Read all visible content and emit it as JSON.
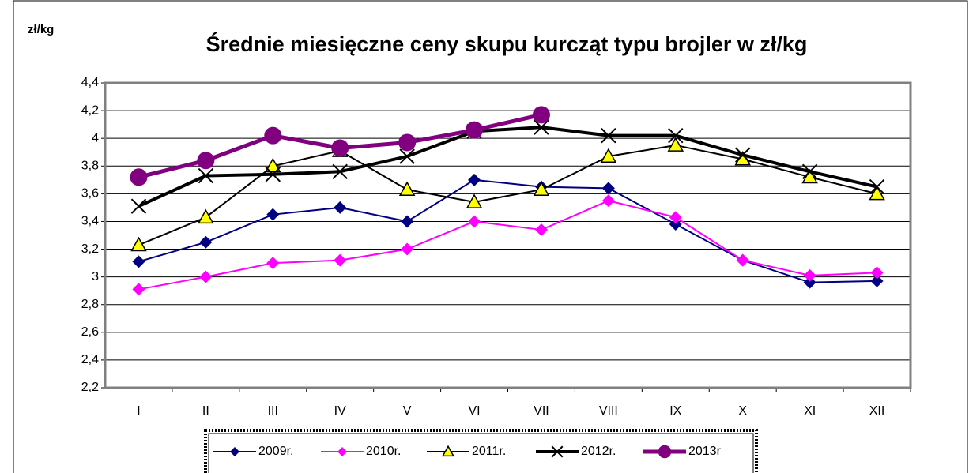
{
  "chart_data": {
    "type": "line",
    "title": "Średnie miesięczne ceny skupu kurcząt typu brojler w zł/kg",
    "y_label": "zł/kg",
    "categories": [
      "I",
      "II",
      "III",
      "IV",
      "V",
      "VI",
      "VII",
      "VIII",
      "IX",
      "X",
      "XI",
      "XII"
    ],
    "series": [
      {
        "name": "2009r.",
        "color": "#000080",
        "marker": "diamond",
        "line_width": 2,
        "values": [
          3.11,
          3.25,
          3.45,
          3.5,
          3.4,
          3.7,
          3.65,
          3.64,
          3.38,
          3.12,
          2.96,
          2.97
        ]
      },
      {
        "name": "2010r.",
        "color": "#ff00ff",
        "marker": "diamond",
        "line_width": 2,
        "values": [
          2.91,
          3.0,
          3.1,
          3.12,
          3.2,
          3.4,
          3.34,
          3.55,
          3.43,
          3.12,
          3.01,
          3.03
        ]
      },
      {
        "name": "2011r.",
        "color": "#000000",
        "marker": "triangle",
        "marker_fill": "#ffff00",
        "line_width": 2,
        "values": [
          3.23,
          3.43,
          3.8,
          3.91,
          3.63,
          3.54,
          3.63,
          3.87,
          3.95,
          3.85,
          3.72,
          3.6
        ]
      },
      {
        "name": "2012r.",
        "color": "#000000",
        "marker": "cross",
        "line_width": 4,
        "values": [
          3.51,
          3.73,
          3.74,
          3.76,
          3.87,
          4.05,
          4.08,
          4.02,
          4.02,
          3.88,
          3.76,
          3.65
        ]
      },
      {
        "name": "2013r",
        "color": "#800080",
        "marker": "circle",
        "line_width": 5,
        "values": [
          3.72,
          3.84,
          4.02,
          3.93,
          3.97,
          4.06,
          4.17,
          null,
          null,
          null,
          null,
          null
        ]
      }
    ],
    "ylim": [
      2.2,
      4.4
    ],
    "yticks": [
      {
        "value": 2.2,
        "label": "2,2"
      },
      {
        "value": 2.4,
        "label": "2,4"
      },
      {
        "value": 2.6,
        "label": "2,6"
      },
      {
        "value": 2.8,
        "label": "2,8"
      },
      3,
      {
        "value": 3.2,
        "label": "3,2"
      },
      {
        "value": 3.4,
        "label": "3,4"
      },
      {
        "value": 3.6,
        "label": "3,6"
      },
      {
        "value": 3.8,
        "label": "3,8"
      },
      4,
      {
        "value": 4.2,
        "label": "4,2"
      },
      {
        "value": 4.4,
        "label": "4,4"
      }
    ],
    "grid": true,
    "legend": "bottom"
  }
}
